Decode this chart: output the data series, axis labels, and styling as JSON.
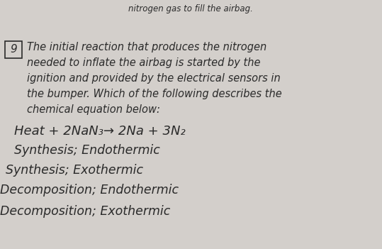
{
  "bg_color": "#d3cfcb",
  "text_color": "#2a2a2a",
  "question_number": "9",
  "top_partial": "nitrogen gas to fill the airbag.",
  "question_text_lines": [
    "The initial reaction that produces the nitrogen",
    "needed to inflate the airbag is started by the",
    "ignition and provided by the electrical sensors in",
    "the bumper. Which of the following describes the",
    "chemical equation below:"
  ],
  "equation": "Heat + 2NaN₃→ 2Na + 3N₂",
  "options": [
    "Synthesis; Endothermic",
    "Synthesis; Exothermic",
    "Decomposition; Endothermic",
    "Decomposition; Exothermic"
  ],
  "fig_width": 5.39,
  "fig_height": 3.51,
  "dpi": 100
}
